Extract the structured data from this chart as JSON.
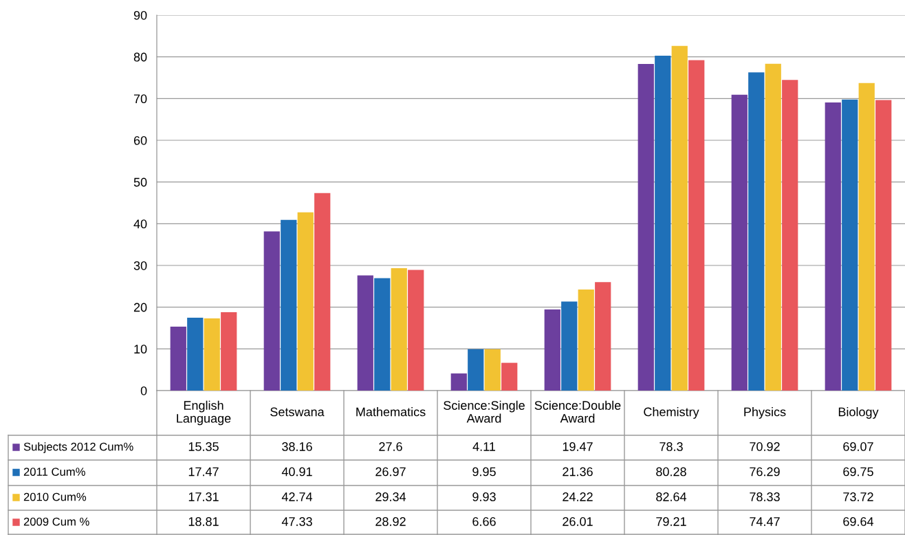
{
  "chart_data": {
    "type": "bar",
    "categories": [
      "English Language",
      "Setswana",
      "Mathematics",
      "Science:Single Award",
      "Science:Double Award",
      "Chemistry",
      "Physics",
      "Biology"
    ],
    "series": [
      {
        "name": "Subjects 2012 Cum%",
        "color": "#6c3f9e",
        "values": [
          15.35,
          38.16,
          27.6,
          4.11,
          19.47,
          78.3,
          70.92,
          69.07
        ]
      },
      {
        "name": "2011 Cum%",
        "color": "#1f70b8",
        "values": [
          17.47,
          40.91,
          26.97,
          9.95,
          21.36,
          80.28,
          76.29,
          69.75
        ]
      },
      {
        "name": "2010 Cum%",
        "color": "#f2c232",
        "values": [
          17.31,
          42.74,
          29.34,
          9.93,
          24.22,
          82.64,
          78.33,
          73.72
        ]
      },
      {
        "name": "2009 Cum %",
        "color": "#e9575c",
        "values": [
          18.81,
          47.33,
          28.92,
          6.66,
          26.01,
          79.21,
          74.47,
          69.64
        ]
      }
    ],
    "ylim": [
      0,
      90
    ],
    "yticks": [
      0,
      10,
      20,
      30,
      40,
      50,
      60,
      70,
      80,
      90
    ],
    "grid": "y",
    "data_labels": true,
    "legend": "bottom left"
  }
}
